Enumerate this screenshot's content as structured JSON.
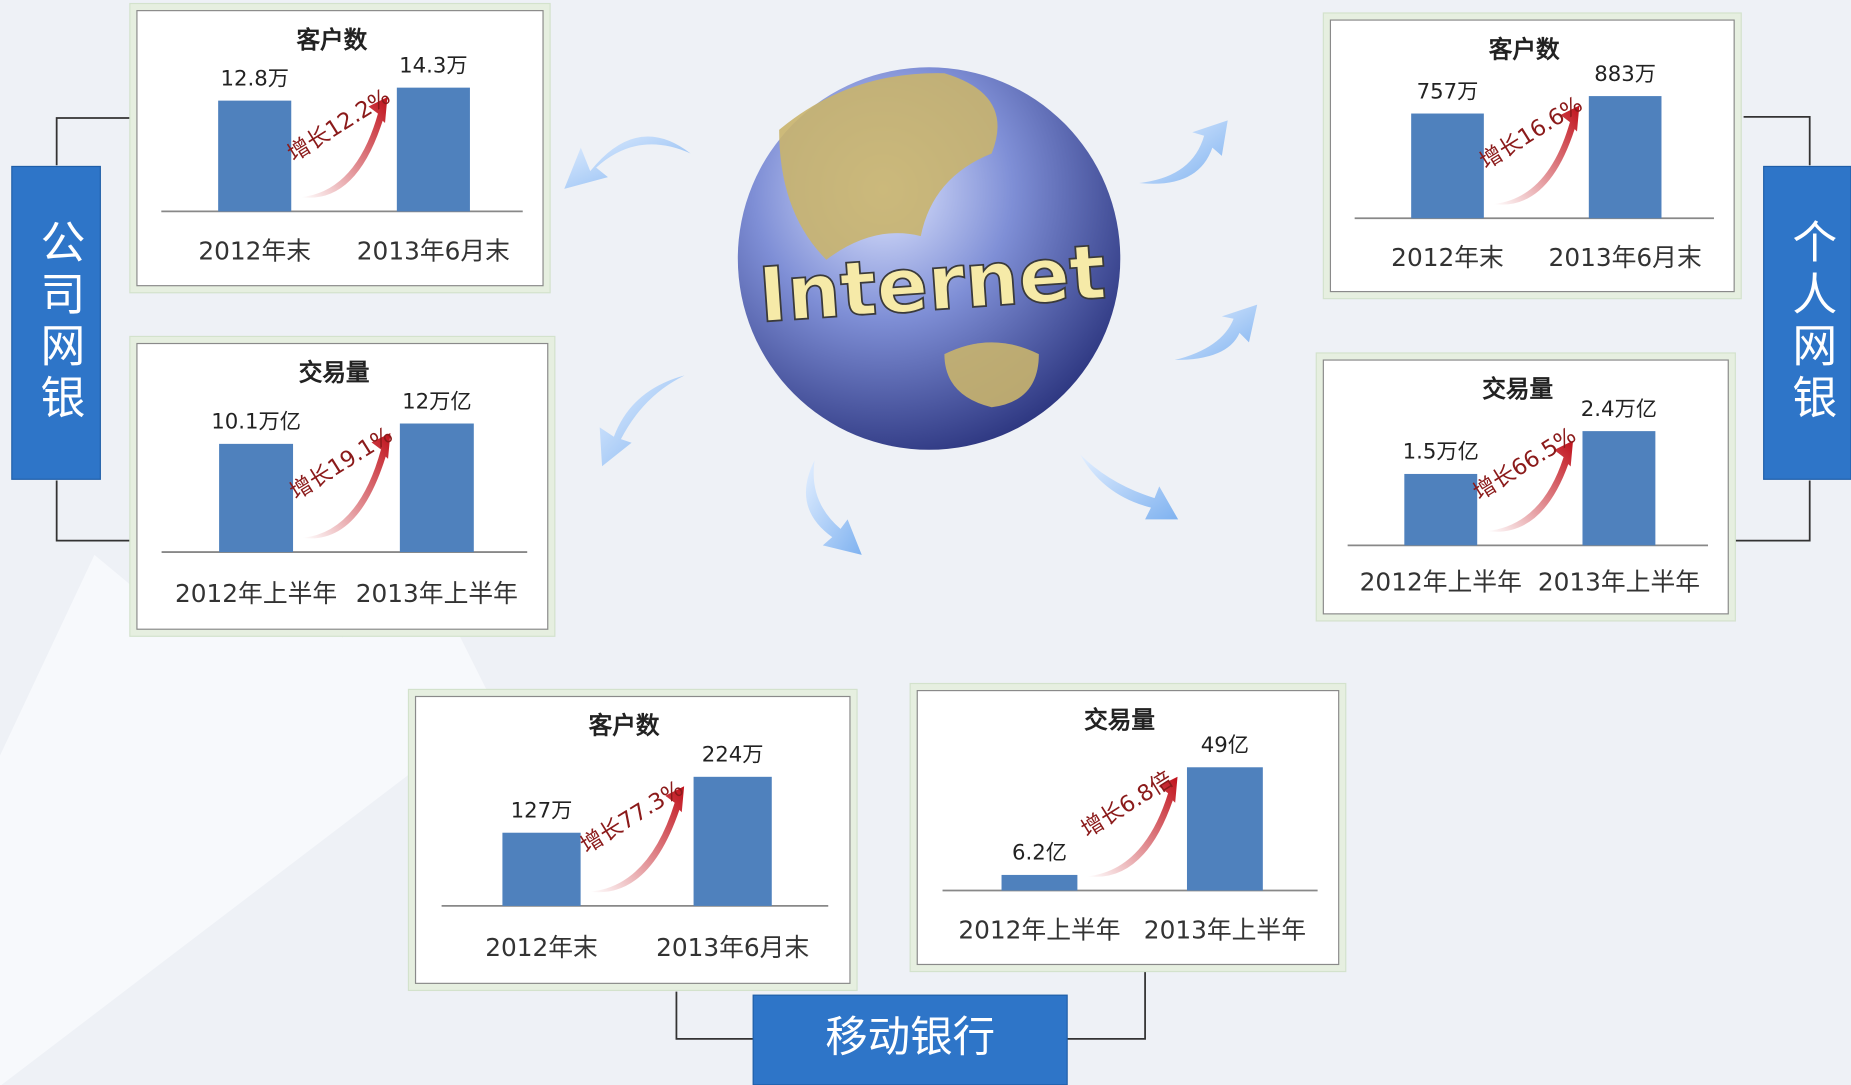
{
  "labels": {
    "internet": "Internet",
    "corporate": "公司网银",
    "personal": "个人网银",
    "mobile": "移动银行"
  },
  "chart_data": [
    {
      "type": "bar",
      "title": "客户数",
      "categories": [
        "2012年末",
        "2013年6月末"
      ],
      "values": [
        12.8,
        14.3
      ],
      "value_labels": [
        "12.8万",
        "14.3万"
      ],
      "color": "#4f81bd",
      "annotation": "增长12.2%"
    },
    {
      "type": "bar",
      "title": "交易量",
      "categories": [
        "2012年上半年",
        "2013年上半年"
      ],
      "values": [
        10.1,
        12
      ],
      "value_labels": [
        "10.1万亿",
        "12万亿"
      ],
      "color": "#4f81bd",
      "annotation": "增长19.1%"
    },
    {
      "type": "bar",
      "title": "客户数",
      "categories": [
        "2012年末",
        "2013年6月末"
      ],
      "values": [
        757,
        883
      ],
      "value_labels": [
        "757万",
        "883万"
      ],
      "color": "#4f81bd",
      "annotation": "增长16.6%"
    },
    {
      "type": "bar",
      "title": "交易量",
      "categories": [
        "2012年上半年",
        "2013年上半年"
      ],
      "values": [
        1.5,
        2.4
      ],
      "value_labels": [
        "1.5万亿",
        "2.4万亿"
      ],
      "color": "#4f81bd",
      "annotation": "增长66.5%"
    },
    {
      "type": "bar",
      "title": "客户数",
      "categories": [
        "2012年末",
        "2013年6月末"
      ],
      "values": [
        127,
        224
      ],
      "value_labels": [
        "127万",
        "224万"
      ],
      "color": "#4f81bd",
      "annotation": "增长77.3%"
    },
    {
      "type": "bar",
      "title": "交易量",
      "categories": [
        "2012年上半年",
        "2013年上半年"
      ],
      "values": [
        6.2,
        49
      ],
      "value_labels": [
        "6.2亿",
        "49亿"
      ],
      "color": "#4f81bd",
      "annotation": "增长6.8倍"
    }
  ]
}
